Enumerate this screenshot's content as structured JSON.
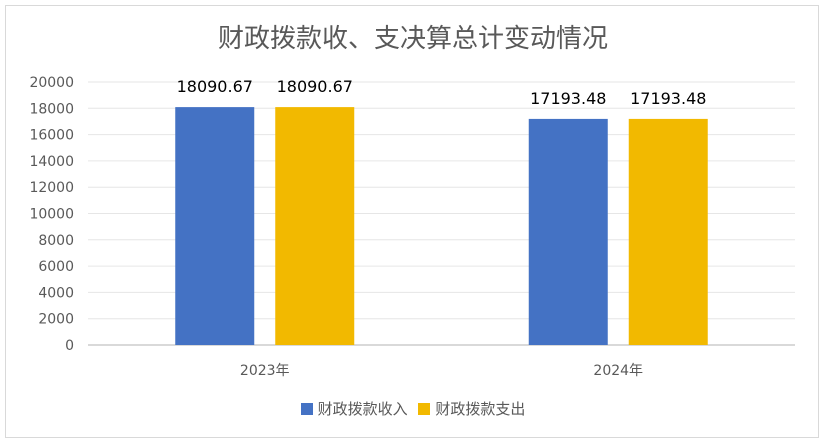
{
  "chart_data": {
    "type": "bar",
    "title": "财政拨款收、支决算总计变动情况",
    "categories": [
      "2023年",
      "2024年"
    ],
    "series": [
      {
        "name": "财政拨款收入",
        "values": [
          18090.67,
          17193.48
        ],
        "color": "#4472c4"
      },
      {
        "name": "财政拨款支出",
        "values": [
          18090.67,
          17193.48
        ],
        "color": "#f2b900"
      }
    ],
    "ylim": [
      0,
      20000
    ],
    "yticks": [
      0,
      2000,
      4000,
      6000,
      8000,
      10000,
      12000,
      14000,
      16000,
      18000,
      20000
    ],
    "grid": true,
    "legend": "bottom",
    "data_labels": [
      "18090.67",
      "17193.48"
    ]
  }
}
